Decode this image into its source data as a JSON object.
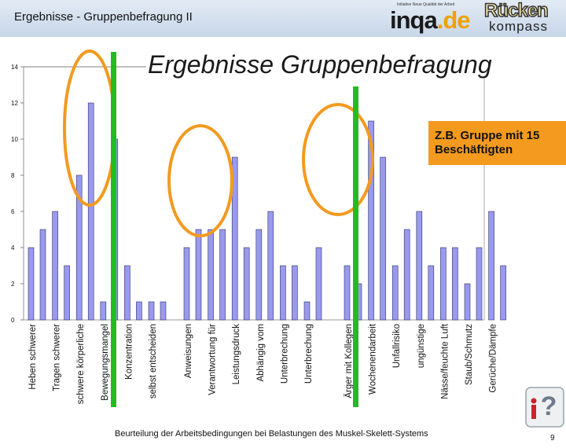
{
  "header": {
    "title": "Ergebnisse - Gruppenbefragung II"
  },
  "logo": {
    "tagline": "Initiative Neue Qualität der Arbeit",
    "brand": "inqa",
    "brand_suffix": ".de",
    "brand2_top": "Rücken",
    "brand2_bottom": "kompass"
  },
  "slide": {
    "title": "Ergebnisse Gruppenbefragung"
  },
  "callout": {
    "text": "Z.B. Gruppe mit 15 Beschäftigten",
    "color": "#f39a1f"
  },
  "footer": {
    "text": "Beurteilung der Arbeitsbedingungen bei Belastungen des Muskel-Skelett-Systems",
    "page": "9"
  },
  "colors": {
    "bar": "#9999ee",
    "bar_border": "#333366",
    "circle": "#f39a1f",
    "divider": "#22bb22",
    "header_bg": "#d4e0ef"
  },
  "icons": {
    "help": "question-mark-person-icon"
  },
  "chart_data": {
    "type": "bar",
    "title": "",
    "xlabel": "",
    "ylabel": "",
    "ylim": [
      0,
      14
    ],
    "yticks": [
      0,
      2,
      4,
      6,
      8,
      10,
      12,
      14
    ],
    "grid": false,
    "groups": [
      {
        "categories": [
          "Heben schwerer",
          "Tragen schwerer",
          "schwere körperliche",
          "Bewegungsmangel",
          "Konzentration",
          "selbst entscheiden"
        ],
        "series_values": [
          [
            4,
            6,
            8,
            1,
            3,
            1
          ],
          [
            5,
            3,
            12,
            10,
            1,
            1
          ]
        ]
      },
      {
        "categories": [
          "Anweisungen",
          "Verantwortung für",
          "Leistungsdruck",
          "Abhängig vom",
          "Unterbrechung",
          "Unterbrechung"
        ],
        "series_values": [
          [
            4,
            5,
            9,
            5,
            3,
            1
          ],
          [
            5,
            5,
            4,
            6,
            3,
            4
          ]
        ]
      },
      {
        "categories": [
          "Ärger mit Kollegen",
          "Wochenendarbeit",
          "Unfallrisiko",
          "ungünstige",
          "Nässe/feuchte Luft",
          "Staub/Schmutz",
          "Gerüche/Dämpfe"
        ],
        "series_values": [
          [
            3,
            11,
            3,
            6,
            4,
            2,
            6
          ],
          [
            2,
            9,
            5,
            3,
            4,
            4,
            3
          ]
        ]
      }
    ]
  }
}
